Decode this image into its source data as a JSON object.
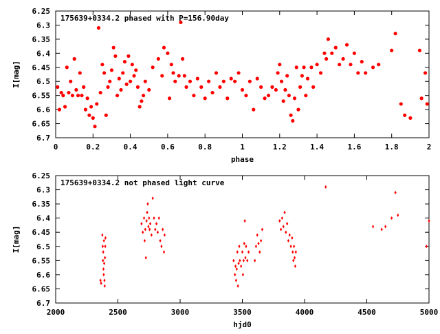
{
  "chart_data": [
    {
      "type": "scatter",
      "title": "175639+0334.2 phased with P=156.90day",
      "xlabel": "phase",
      "ylabel": "I[mag]",
      "xlim": [
        0,
        2
      ],
      "ylim": [
        6.25,
        6.7
      ],
      "y_inverted": true,
      "x_ticks": [
        "0",
        "0.2",
        "0.4",
        "0.6",
        "0.8",
        "1",
        "1.2",
        "1.4",
        "1.6",
        "1.8",
        "2"
      ],
      "y_ticks": [
        "6.25",
        "6.3",
        "6.35",
        "6.4",
        "6.45",
        "6.5",
        "6.55",
        "6.6",
        "6.65",
        "6.7"
      ],
      "marker_color": "#ff0000",
      "series": [
        {
          "points": [
            [
              0.01,
              6.52
            ],
            [
              0.02,
              6.6
            ],
            [
              0.03,
              6.54
            ],
            [
              0.04,
              6.55
            ],
            [
              0.05,
              6.59
            ],
            [
              0.06,
              6.45
            ],
            [
              0.07,
              6.54
            ],
            [
              0.08,
              6.5
            ],
            [
              0.09,
              6.55
            ],
            [
              0.1,
              6.42
            ],
            [
              0.11,
              6.53
            ],
            [
              0.12,
              6.55
            ],
            [
              0.13,
              6.47
            ],
            [
              0.14,
              6.55
            ],
            [
              0.15,
              6.52
            ],
            [
              0.16,
              6.6
            ],
            [
              0.17,
              6.56
            ],
            [
              0.18,
              6.62
            ],
            [
              0.19,
              6.59
            ],
            [
              0.2,
              6.63
            ],
            [
              0.21,
              6.66
            ],
            [
              0.22,
              6.58
            ],
            [
              0.23,
              6.31
            ],
            [
              0.24,
              6.54
            ],
            [
              0.25,
              6.44
            ],
            [
              0.26,
              6.47
            ],
            [
              0.27,
              6.62
            ],
            [
              0.28,
              6.52
            ],
            [
              0.29,
              6.5
            ],
            [
              0.3,
              6.46
            ],
            [
              0.31,
              6.38
            ],
            [
              0.32,
              6.41
            ],
            [
              0.33,
              6.55
            ],
            [
              0.34,
              6.49
            ],
            [
              0.35,
              6.53
            ],
            [
              0.36,
              6.47
            ],
            [
              0.37,
              6.43
            ],
            [
              0.38,
              6.51
            ],
            [
              0.39,
              6.41
            ],
            [
              0.4,
              6.5
            ],
            [
              0.41,
              6.44
            ],
            [
              0.42,
              6.48
            ],
            [
              0.43,
              6.46
            ],
            [
              0.44,
              6.52
            ],
            [
              0.45,
              6.59
            ],
            [
              0.46,
              6.57
            ],
            [
              0.47,
              6.55
            ],
            [
              0.48,
              6.5
            ],
            [
              0.5,
              6.53
            ],
            [
              0.52,
              6.45
            ],
            [
              0.55,
              6.42
            ],
            [
              0.57,
              6.48
            ],
            [
              0.58,
              6.38
            ],
            [
              0.6,
              6.4
            ],
            [
              0.61,
              6.56
            ],
            [
              0.62,
              6.44
            ],
            [
              0.63,
              6.47
            ],
            [
              0.64,
              6.5
            ],
            [
              0.66,
              6.48
            ],
            [
              0.67,
              6.29
            ],
            [
              0.68,
              6.42
            ],
            [
              0.69,
              6.48
            ],
            [
              0.7,
              6.52
            ],
            [
              0.72,
              6.5
            ],
            [
              0.74,
              6.55
            ],
            [
              0.76,
              6.49
            ],
            [
              0.78,
              6.52
            ],
            [
              0.8,
              6.56
            ],
            [
              0.82,
              6.5
            ],
            [
              0.84,
              6.54
            ],
            [
              0.86,
              6.47
            ],
            [
              0.88,
              6.52
            ],
            [
              0.9,
              6.5
            ],
            [
              0.92,
              6.56
            ],
            [
              0.94,
              6.49
            ],
            [
              0.96,
              6.5
            ],
            [
              0.98,
              6.47
            ],
            [
              1.0,
              6.53
            ],
            [
              1.02,
              6.55
            ],
            [
              1.04,
              6.5
            ],
            [
              1.06,
              6.6
            ],
            [
              1.08,
              6.49
            ],
            [
              1.1,
              6.52
            ],
            [
              1.12,
              6.56
            ],
            [
              1.14,
              6.55
            ],
            [
              1.16,
              6.52
            ],
            [
              1.18,
              6.53
            ],
            [
              1.19,
              6.47
            ],
            [
              1.2,
              6.44
            ],
            [
              1.21,
              6.5
            ],
            [
              1.22,
              6.57
            ],
            [
              1.23,
              6.53
            ],
            [
              1.24,
              6.48
            ],
            [
              1.25,
              6.55
            ],
            [
              1.26,
              6.62
            ],
            [
              1.27,
              6.64
            ],
            [
              1.28,
              6.56
            ],
            [
              1.29,
              6.45
            ],
            [
              1.3,
              6.6
            ],
            [
              1.31,
              6.52
            ],
            [
              1.32,
              6.48
            ],
            [
              1.33,
              6.45
            ],
            [
              1.34,
              6.55
            ],
            [
              1.35,
              6.49
            ],
            [
              1.37,
              6.45
            ],
            [
              1.38,
              6.52
            ],
            [
              1.4,
              6.44
            ],
            [
              1.42,
              6.47
            ],
            [
              1.44,
              6.4
            ],
            [
              1.45,
              6.42
            ],
            [
              1.46,
              6.35
            ],
            [
              1.48,
              6.4
            ],
            [
              1.5,
              6.38
            ],
            [
              1.52,
              6.44
            ],
            [
              1.54,
              6.42
            ],
            [
              1.56,
              6.37
            ],
            [
              1.58,
              6.44
            ],
            [
              1.6,
              6.4
            ],
            [
              1.62,
              6.47
            ],
            [
              1.64,
              6.43
            ],
            [
              1.66,
              6.47
            ],
            [
              1.7,
              6.45
            ],
            [
              1.73,
              6.44
            ],
            [
              1.8,
              6.39
            ],
            [
              1.82,
              6.33
            ],
            [
              1.85,
              6.58
            ],
            [
              1.87,
              6.62
            ],
            [
              1.9,
              6.63
            ],
            [
              1.95,
              6.39
            ],
            [
              1.96,
              6.56
            ],
            [
              1.98,
              6.47
            ],
            [
              1.99,
              6.58
            ]
          ]
        }
      ]
    },
    {
      "type": "scatter",
      "title": "175639+0334.2 not phased light curve",
      "xlabel": "hjd0",
      "ylabel": "I[mag]",
      "xlim": [
        2000,
        5000
      ],
      "ylim": [
        6.25,
        6.7
      ],
      "y_inverted": true,
      "x_ticks": [
        "2000",
        "2500",
        "3000",
        "3500",
        "4000",
        "4500",
        "5000"
      ],
      "y_ticks": [
        "6.25",
        "6.3",
        "6.35",
        "6.4",
        "6.45",
        "6.5",
        "6.55",
        "6.6",
        "6.65",
        "6.7"
      ],
      "marker_color": "#ff0000",
      "series": [
        {
          "points": [
            [
              2360,
              6.62
            ],
            [
              2365,
              6.63
            ],
            [
              2375,
              6.46
            ],
            [
              2378,
              6.5
            ],
            [
              2380,
              6.55
            ],
            [
              2382,
              6.52
            ],
            [
              2384,
              6.58
            ],
            [
              2386,
              6.6
            ],
            [
              2388,
              6.48
            ],
            [
              2390,
              6.56
            ],
            [
              2392,
              6.62
            ],
            [
              2394,
              6.64
            ],
            [
              2396,
              6.54
            ],
            [
              2398,
              6.5
            ],
            [
              2400,
              6.47
            ],
            [
              2690,
              6.42
            ],
            [
              2700,
              6.45
            ],
            [
              2710,
              6.4
            ],
            [
              2715,
              6.48
            ],
            [
              2720,
              6.44
            ],
            [
              2725,
              6.54
            ],
            [
              2730,
              6.41
            ],
            [
              2735,
              6.38
            ],
            [
              2740,
              6.35
            ],
            [
              2745,
              6.43
            ],
            [
              2750,
              6.4
            ],
            [
              2755,
              6.44
            ],
            [
              2760,
              6.42
            ],
            [
              2770,
              6.46
            ],
            [
              2780,
              6.33
            ],
            [
              2790,
              6.4
            ],
            [
              2800,
              6.44
            ],
            [
              2810,
              6.42
            ],
            [
              2820,
              6.45
            ],
            [
              2830,
              6.4
            ],
            [
              2840,
              6.48
            ],
            [
              2850,
              6.5
            ],
            [
              2860,
              6.44
            ],
            [
              2870,
              6.52
            ],
            [
              2875,
              6.46
            ],
            [
              3430,
              6.55
            ],
            [
              3440,
              6.6
            ],
            [
              3445,
              6.57
            ],
            [
              3450,
              6.62
            ],
            [
              3455,
              6.58
            ],
            [
              3460,
              6.52
            ],
            [
              3465,
              6.64
            ],
            [
              3470,
              6.56
            ],
            [
              3475,
              6.5
            ],
            [
              3480,
              6.55
            ],
            [
              3490,
              6.57
            ],
            [
              3500,
              6.52
            ],
            [
              3505,
              6.6
            ],
            [
              3510,
              6.55
            ],
            [
              3515,
              6.49
            ],
            [
              3520,
              6.41
            ],
            [
              3525,
              6.54
            ],
            [
              3530,
              6.5
            ],
            [
              3540,
              6.55
            ],
            [
              3550,
              6.52
            ],
            [
              3600,
              6.55
            ],
            [
              3610,
              6.5
            ],
            [
              3620,
              6.46
            ],
            [
              3630,
              6.49
            ],
            [
              3640,
              6.52
            ],
            [
              3650,
              6.48
            ],
            [
              3660,
              6.44
            ],
            [
              3800,
              6.41
            ],
            [
              3810,
              6.44
            ],
            [
              3820,
              6.4
            ],
            [
              3830,
              6.43
            ],
            [
              3840,
              6.38
            ],
            [
              3850,
              6.45
            ],
            [
              3860,
              6.42
            ],
            [
              3870,
              6.48
            ],
            [
              3880,
              6.46
            ],
            [
              3890,
              6.5
            ],
            [
              3900,
              6.47
            ],
            [
              3905,
              6.52
            ],
            [
              3910,
              6.55
            ],
            [
              3915,
              6.5
            ],
            [
              3920,
              6.54
            ],
            [
              3925,
              6.57
            ],
            [
              3930,
              6.52
            ],
            [
              4170,
              6.29
            ],
            [
              4550,
              6.43
            ],
            [
              4620,
              6.44
            ],
            [
              4650,
              6.43
            ],
            [
              4700,
              6.4
            ],
            [
              4730,
              6.31
            ],
            [
              4750,
              6.39
            ],
            [
              4980,
              6.5
            ],
            [
              5000,
              6.41
            ]
          ]
        }
      ]
    }
  ]
}
